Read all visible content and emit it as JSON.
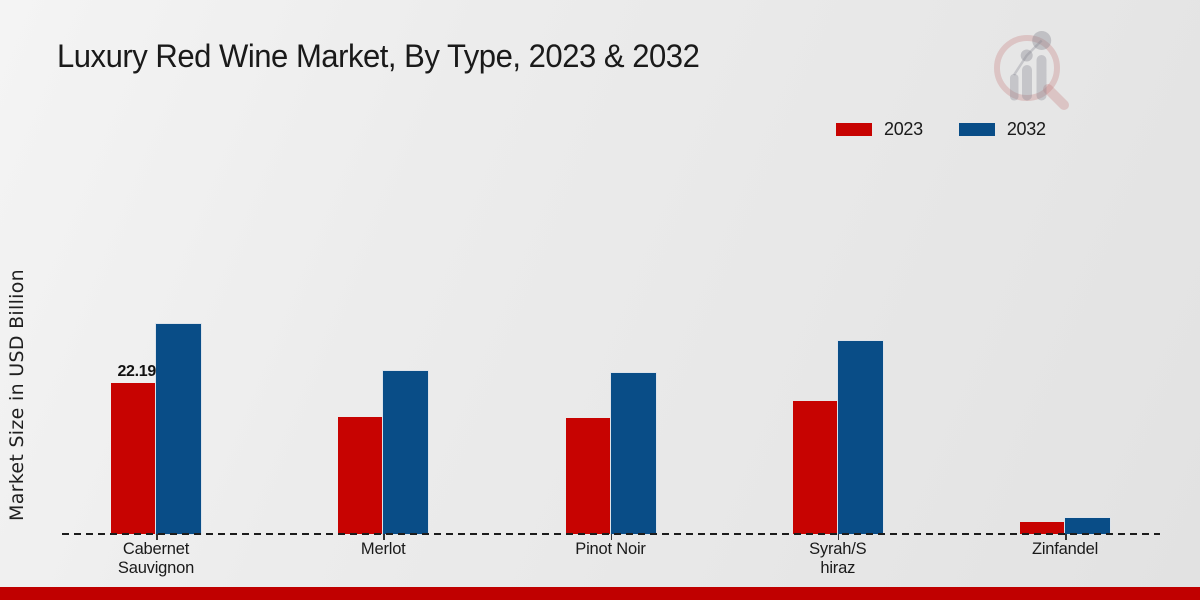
{
  "title": "Luxury Red Wine Market, By Type, 2023 & 2032",
  "y_axis_label": "Market Size in USD Billion",
  "legend": [
    {
      "label": "2023",
      "color": "#c70301"
    },
    {
      "label": "2032",
      "color": "#094d87"
    }
  ],
  "colors": {
    "series_2023": "#c70301",
    "series_2032": "#094d87",
    "footer_strip": "#c00000",
    "baseline": "#1c1c1c",
    "background_light": "#f4f4f4",
    "background_dark": "#e2e2e2"
  },
  "watermark_icon": "magnifier-bar-chart-logo",
  "chart_data": {
    "type": "bar",
    "title": "Luxury Red Wine Market, By Type, 2023 & 2032",
    "xlabel": "",
    "ylabel": "Market Size in USD Billion",
    "unit": "USD Billion",
    "categories": [
      "Cabernet Sauvignon",
      "Merlot",
      "Pinot Noir",
      "Syrah/Shiraz",
      "Zinfandel"
    ],
    "category_label_lines": [
      [
        "Cabernet",
        "Sauvignon"
      ],
      [
        "Merlot"
      ],
      [
        "Pinot Noir"
      ],
      [
        "Syrah/S",
        "hiraz"
      ],
      [
        "Zinfandel"
      ]
    ],
    "series": [
      {
        "name": "2023",
        "color": "#c70301",
        "values": [
          22.19,
          17.2,
          17.1,
          19.6,
          1.8
        ]
      },
      {
        "name": "2032",
        "color": "#094d87",
        "values": [
          30.8,
          23.9,
          23.6,
          28.4,
          2.4
        ]
      }
    ],
    "annotations": [
      {
        "series_index": 0,
        "category_index": 0,
        "text": "22.19"
      }
    ],
    "ylim": [
      0,
      34
    ],
    "grid": false,
    "axis_style": "dashed-baseline-only",
    "legend_position": "top-right"
  }
}
